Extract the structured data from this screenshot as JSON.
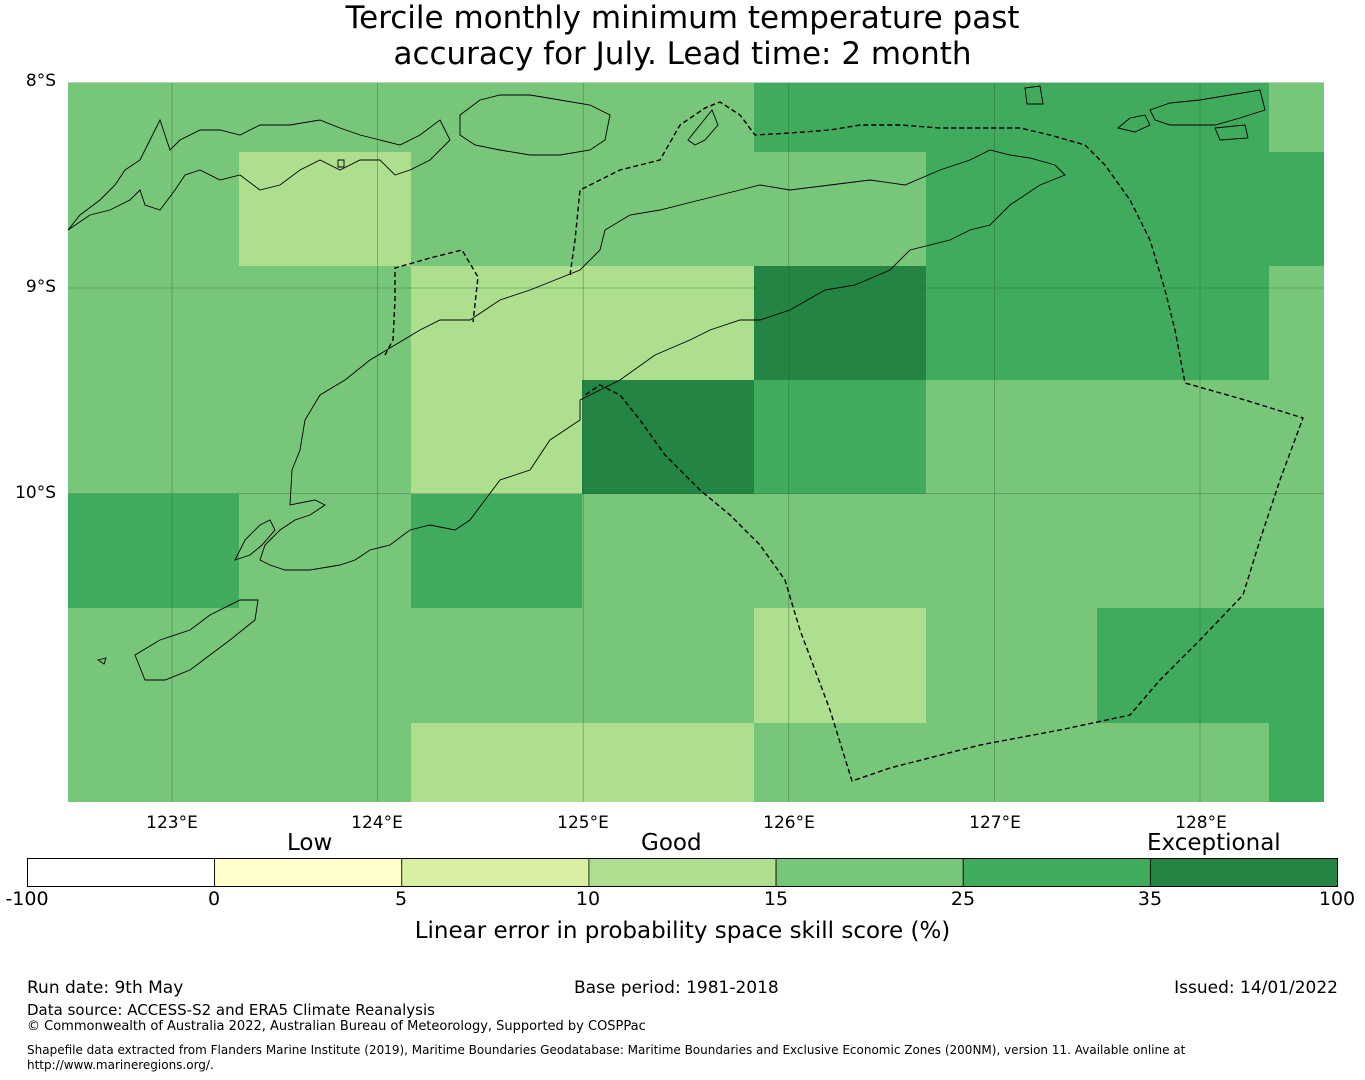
{
  "title": {
    "line1": "Tercile monthly minimum temperature past",
    "line2": "accuracy for July. Lead time: 2 month"
  },
  "map": {
    "lat_labels": [
      "8°S",
      "9°S",
      "10°S"
    ],
    "lon_labels": [
      "123°E",
      "124°E",
      "125°E",
      "126°E",
      "127°E",
      "128°E"
    ],
    "lon_values": [
      123,
      124,
      125,
      126,
      127,
      128
    ],
    "lat_values": [
      -8,
      -9,
      -10
    ],
    "extent": {
      "lon": [
        122.5,
        128.6
      ],
      "lat": [
        -8.0,
        -11.5
      ]
    },
    "colors_by_category": {
      "c10_15": "#addf8e",
      "c15_25": "#78c679",
      "c25_35": "#41ab5d",
      "c35_100": "#238443"
    },
    "grid_cells": [
      {
        "row": 0,
        "col": 0,
        "cat": "c15_25"
      },
      {
        "row": 0,
        "col": 1,
        "cat": "c15_25"
      },
      {
        "row": 0,
        "col": 2,
        "cat": "c15_25"
      },
      {
        "row": 0,
        "col": 3,
        "cat": "c15_25"
      },
      {
        "row": 0,
        "col": 4,
        "cat": "c25_35"
      },
      {
        "row": 0,
        "col": 5,
        "cat": "c25_35"
      },
      {
        "row": 0,
        "col": 6,
        "cat": "c25_35"
      },
      {
        "row": 0,
        "col": 7,
        "cat": "c15_25"
      },
      {
        "row": 1,
        "col": 0,
        "cat": "c15_25"
      },
      {
        "row": 1,
        "col": 1,
        "cat": "c10_15"
      },
      {
        "row": 1,
        "col": 2,
        "cat": "c15_25"
      },
      {
        "row": 1,
        "col": 3,
        "cat": "c15_25"
      },
      {
        "row": 1,
        "col": 4,
        "cat": "c15_25"
      },
      {
        "row": 1,
        "col": 5,
        "cat": "c25_35"
      },
      {
        "row": 1,
        "col": 6,
        "cat": "c25_35"
      },
      {
        "row": 1,
        "col": 7,
        "cat": "c25_35"
      },
      {
        "row": 2,
        "col": 0,
        "cat": "c15_25"
      },
      {
        "row": 2,
        "col": 1,
        "cat": "c15_25"
      },
      {
        "row": 2,
        "col": 2,
        "cat": "c10_15"
      },
      {
        "row": 2,
        "col": 3,
        "cat": "c10_15"
      },
      {
        "row": 2,
        "col": 4,
        "cat": "c35_100"
      },
      {
        "row": 2,
        "col": 5,
        "cat": "c25_35"
      },
      {
        "row": 2,
        "col": 6,
        "cat": "c25_35"
      },
      {
        "row": 2,
        "col": 7,
        "cat": "c15_25"
      },
      {
        "row": 3,
        "col": 0,
        "cat": "c15_25"
      },
      {
        "row": 3,
        "col": 1,
        "cat": "c15_25"
      },
      {
        "row": 3,
        "col": 2,
        "cat": "c10_15"
      },
      {
        "row": 3,
        "col": 3,
        "cat": "c35_100"
      },
      {
        "row": 3,
        "col": 4,
        "cat": "c25_35"
      },
      {
        "row": 3,
        "col": 5,
        "cat": "c15_25"
      },
      {
        "row": 3,
        "col": 6,
        "cat": "c15_25"
      },
      {
        "row": 3,
        "col": 7,
        "cat": "c15_25"
      },
      {
        "row": 4,
        "col": 0,
        "cat": "c25_35"
      },
      {
        "row": 4,
        "col": 1,
        "cat": "c15_25"
      },
      {
        "row": 4,
        "col": 2,
        "cat": "c25_35"
      },
      {
        "row": 4,
        "col": 3,
        "cat": "c15_25"
      },
      {
        "row": 4,
        "col": 4,
        "cat": "c15_25"
      },
      {
        "row": 4,
        "col": 5,
        "cat": "c15_25"
      },
      {
        "row": 4,
        "col": 6,
        "cat": "c15_25"
      },
      {
        "row": 4,
        "col": 7,
        "cat": "c15_25"
      },
      {
        "row": 5,
        "col": 0,
        "cat": "c15_25"
      },
      {
        "row": 5,
        "col": 1,
        "cat": "c15_25"
      },
      {
        "row": 5,
        "col": 2,
        "cat": "c15_25"
      },
      {
        "row": 5,
        "col": 3,
        "cat": "c15_25"
      },
      {
        "row": 5,
        "col": 4,
        "cat": "c10_15"
      },
      {
        "row": 5,
        "col": 5,
        "cat": "c15_25"
      },
      {
        "row": 5,
        "col": 6,
        "cat": "c25_35"
      },
      {
        "row": 5,
        "col": 7,
        "cat": "c25_35"
      },
      {
        "row": 6,
        "col": 0,
        "cat": "c15_25"
      },
      {
        "row": 6,
        "col": 1,
        "cat": "c15_25"
      },
      {
        "row": 6,
        "col": 2,
        "cat": "c10_15"
      },
      {
        "row": 6,
        "col": 3,
        "cat": "c10_15"
      },
      {
        "row": 6,
        "col": 4,
        "cat": "c15_25"
      },
      {
        "row": 6,
        "col": 5,
        "cat": "c15_25"
      },
      {
        "row": 6,
        "col": 6,
        "cat": "c15_25"
      },
      {
        "row": 6,
        "col": 7,
        "cat": "c25_35"
      }
    ]
  },
  "legend": {
    "categories": [
      "Low",
      "Good",
      "Exceptional"
    ],
    "ticks": [
      "-100",
      "0",
      "5",
      "10",
      "15",
      "25",
      "35",
      "100"
    ],
    "bins": [
      {
        "from": -100,
        "to": 0,
        "color": "#ffffff"
      },
      {
        "from": 0,
        "to": 5,
        "color": "#ffffcc"
      },
      {
        "from": 5,
        "to": 10,
        "color": "#d9f0a3"
      },
      {
        "from": 10,
        "to": 15,
        "color": "#addf8e"
      },
      {
        "from": 15,
        "to": 25,
        "color": "#78c679"
      },
      {
        "from": 25,
        "to": 35,
        "color": "#41ab5d"
      },
      {
        "from": 35,
        "to": 100,
        "color": "#238443"
      }
    ],
    "label": "Linear error in probability space skill score (%)"
  },
  "footer": {
    "run_date": "Run date: 9th May",
    "base_period": "Base period: 1981-2018",
    "issued": "Issued: 14/01/2022",
    "data_source": "Data source: ACCESS-S2 and ERA5 Climate Reanalysis",
    "copyright": "© Commonwealth of Australia 2022, Australian Bureau of Meteorology, Supported by COSPPac",
    "shapefile": "Shapefile data extracted from Flanders Marine Institute (2019), Maritime Boundaries Geodatabase: Maritime Boundaries and Exclusive Economic Zones (200NM), version 11. Available online at http://www.marineregions.org/."
  }
}
